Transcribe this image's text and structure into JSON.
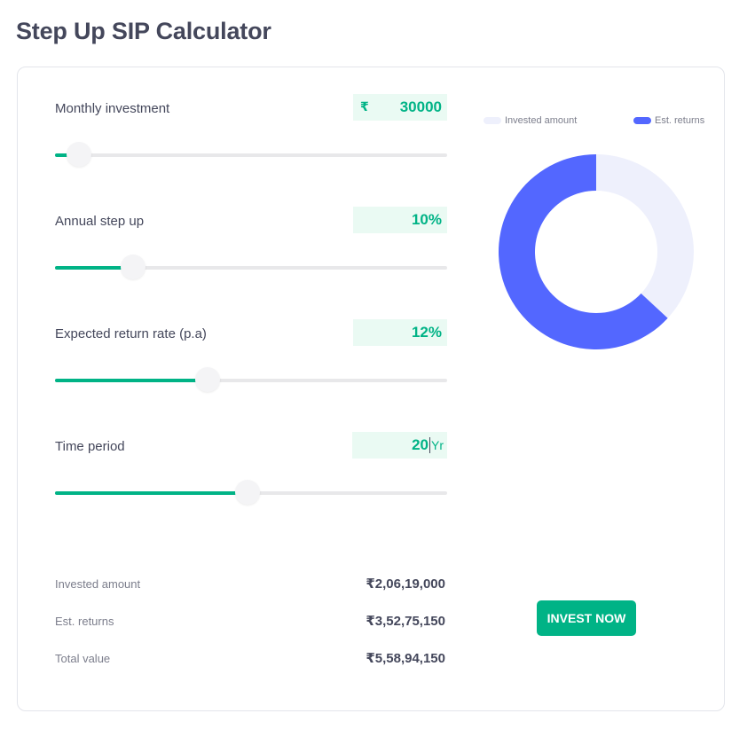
{
  "page": {
    "title": "Step Up SIP Calculator"
  },
  "fields": {
    "monthly_investment": {
      "label": "Monthly investment",
      "currency": "₹",
      "value": "30000",
      "slider_fraction": 0.06
    },
    "annual_step_up": {
      "label": "Annual step up",
      "value": "10%",
      "slider_fraction": 0.2
    },
    "expected_return": {
      "label": "Expected return rate (p.a)",
      "value": "12%",
      "slider_fraction": 0.39
    },
    "time_period": {
      "label": "Time period",
      "value": "20",
      "suffix": "Yr",
      "slider_fraction": 0.49
    }
  },
  "legend": {
    "invested": {
      "label": "Invested amount",
      "color": "#eef0fc"
    },
    "returns": {
      "label": "Est. returns",
      "color": "#5367ff"
    }
  },
  "donut": {
    "invested_share": 0.369,
    "returns_share": 0.631
  },
  "summary": {
    "invested": {
      "label": "Invested amount",
      "value": "₹2,06,19,000"
    },
    "returns": {
      "label": "Est. returns",
      "value": "₹3,52,75,150"
    },
    "total": {
      "label": "Total value",
      "value": "₹5,58,94,150"
    }
  },
  "cta": {
    "label": "INVEST NOW",
    "color": "#00b386"
  }
}
